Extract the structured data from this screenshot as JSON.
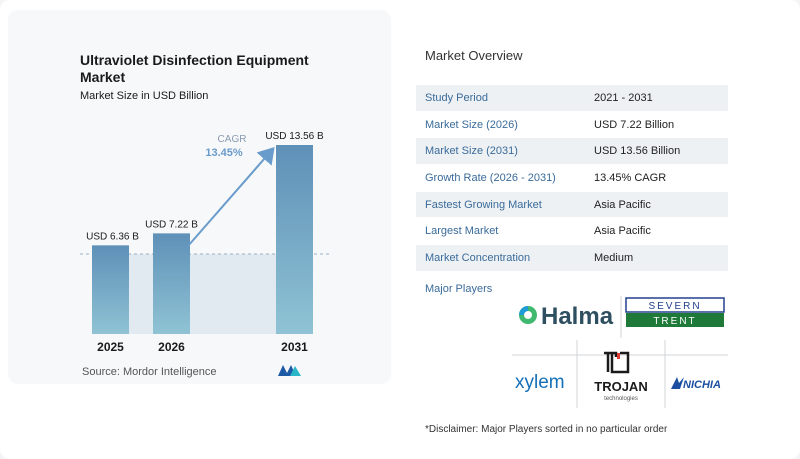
{
  "chart": {
    "title": "Ultraviolet Disinfection Equipment Market",
    "subtitle": "Market Size in USD Billion",
    "source": "Source: Mordor Intelligence",
    "cagr_label": "CAGR",
    "cagr_value": "13.45%"
  },
  "chart_data": {
    "type": "bar",
    "categories": [
      "2025",
      "2026",
      "2031"
    ],
    "values": [
      6.36,
      7.22,
      13.56
    ],
    "value_labels": [
      "USD 6.36 B",
      "USD 7.22 B",
      "USD 13.56 B"
    ],
    "title": "Ultraviolet Disinfection Equipment Market",
    "subtitle": "Market Size in USD Billion",
    "xlabel": "",
    "ylabel": "",
    "annotation": "CAGR 13.45%",
    "grid": false
  },
  "overview": {
    "title": "Market Overview",
    "rows": [
      {
        "label": "Study Period",
        "value": "2021 - 2031"
      },
      {
        "label": "Market Size (2026)",
        "value": "USD 7.22 Billion"
      },
      {
        "label": "Market Size (2031)",
        "value": "USD 13.56 Billion"
      },
      {
        "label": "Growth Rate (2026 - 2031)",
        "value": "13.45% CAGR"
      },
      {
        "label": "Fastest Growing Market",
        "value": "Asia Pacific"
      },
      {
        "label": "Largest Market",
        "value": "Asia Pacific"
      },
      {
        "label": "Market Concentration",
        "value": "Medium"
      }
    ],
    "players_title": "Major Players",
    "players": {
      "halma": "Halma",
      "severn": "SEVERN",
      "trent": "TRENT",
      "xylem": "xylem",
      "trojan": "TROJAN",
      "trojan_sub": "technologies",
      "nichia": "NICHIA"
    },
    "disclaimer": "*Disclaimer: Major Players sorted in no particular order"
  },
  "colors": {
    "bar_top": "#5f90b8",
    "bar_bottom": "#8fc3d4",
    "arrow": "#6a9ccb",
    "label_blue": "#3a6b9a",
    "severn_green": "#1f7a3a",
    "severn_blue": "#23408e"
  }
}
